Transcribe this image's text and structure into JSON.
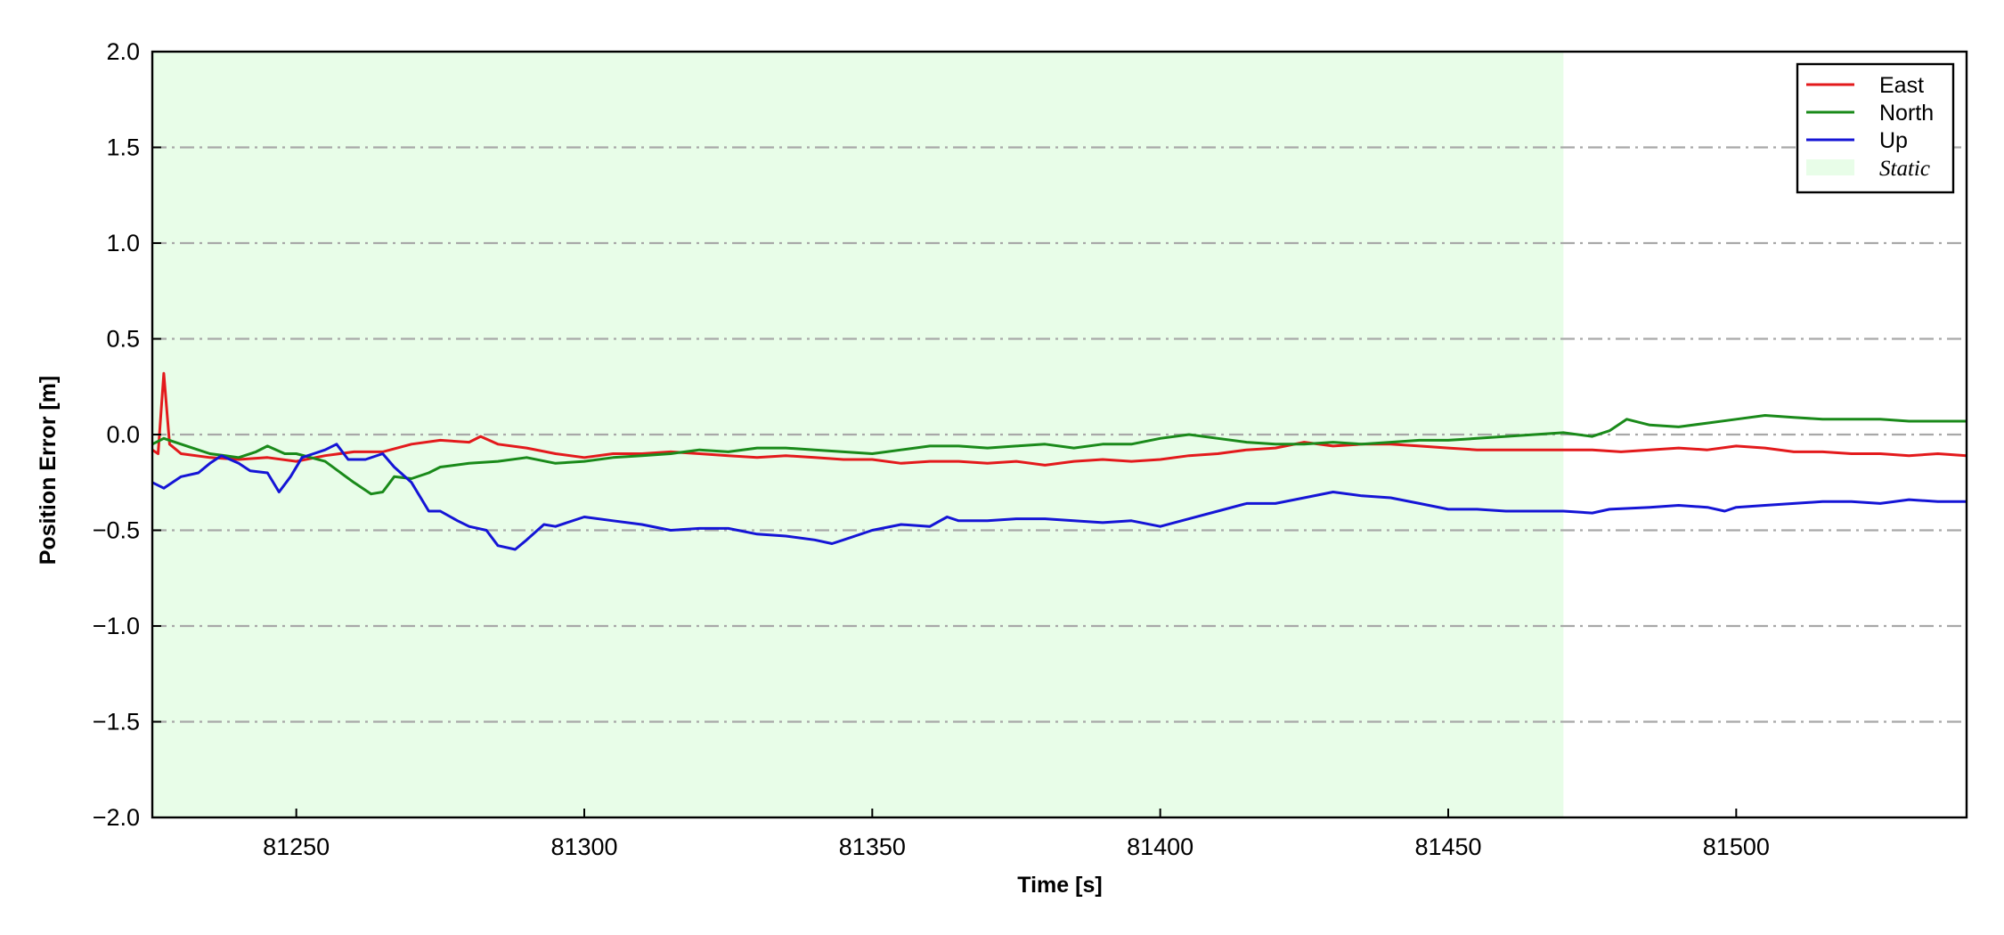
{
  "chart_data": {
    "type": "line",
    "xlabel": "Time [s]",
    "ylabel": "Position Error [m]",
    "xlim": [
      81225,
      81540
    ],
    "ylim": [
      -2.0,
      2.0
    ],
    "xticks": [
      81250,
      81300,
      81350,
      81400,
      81450,
      81500
    ],
    "xtick_labels": [
      "81250",
      "81300",
      "81350",
      "81400",
      "81450",
      "81500"
    ],
    "yticks": [
      2.0,
      1.5,
      1.0,
      0.5,
      0.0,
      -0.5,
      -1.0,
      -1.5,
      -2.0
    ],
    "ytick_labels": [
      "2.0",
      "1.5",
      "1.0",
      "0.5",
      "0.0",
      "−0.5",
      "−1.0",
      "−1.5",
      "−2.0"
    ],
    "grid": "horizontal dash-dot",
    "legend_position": "top-right",
    "shaded_region": {
      "label": "Static",
      "x": [
        81225,
        81470
      ],
      "color": "#e8fde8"
    },
    "series": [
      {
        "name": "East",
        "color": "#e31a1c",
        "points": [
          [
            81225,
            -0.08
          ],
          [
            81226,
            -0.1
          ],
          [
            81227,
            0.32
          ],
          [
            81228,
            -0.05
          ],
          [
            81230,
            -0.1
          ],
          [
            81235,
            -0.12
          ],
          [
            81240,
            -0.13
          ],
          [
            81245,
            -0.12
          ],
          [
            81250,
            -0.14
          ],
          [
            81255,
            -0.11
          ],
          [
            81260,
            -0.09
          ],
          [
            81265,
            -0.09
          ],
          [
            81270,
            -0.05
          ],
          [
            81275,
            -0.03
          ],
          [
            81280,
            -0.04
          ],
          [
            81282,
            -0.01
          ],
          [
            81285,
            -0.05
          ],
          [
            81290,
            -0.07
          ],
          [
            81295,
            -0.1
          ],
          [
            81300,
            -0.12
          ],
          [
            81305,
            -0.1
          ],
          [
            81310,
            -0.1
          ],
          [
            81315,
            -0.09
          ],
          [
            81320,
            -0.1
          ],
          [
            81325,
            -0.11
          ],
          [
            81330,
            -0.12
          ],
          [
            81335,
            -0.11
          ],
          [
            81340,
            -0.12
          ],
          [
            81345,
            -0.13
          ],
          [
            81350,
            -0.13
          ],
          [
            81355,
            -0.15
          ],
          [
            81360,
            -0.14
          ],
          [
            81365,
            -0.14
          ],
          [
            81370,
            -0.15
          ],
          [
            81375,
            -0.14
          ],
          [
            81380,
            -0.16
          ],
          [
            81385,
            -0.14
          ],
          [
            81390,
            -0.13
          ],
          [
            81395,
            -0.14
          ],
          [
            81400,
            -0.13
          ],
          [
            81405,
            -0.11
          ],
          [
            81410,
            -0.1
          ],
          [
            81415,
            -0.08
          ],
          [
            81420,
            -0.07
          ],
          [
            81425,
            -0.04
          ],
          [
            81430,
            -0.06
          ],
          [
            81435,
            -0.05
          ],
          [
            81440,
            -0.05
          ],
          [
            81445,
            -0.06
          ],
          [
            81450,
            -0.07
          ],
          [
            81455,
            -0.08
          ],
          [
            81460,
            -0.08
          ],
          [
            81465,
            -0.08
          ],
          [
            81470,
            -0.08
          ],
          [
            81475,
            -0.08
          ],
          [
            81480,
            -0.09
          ],
          [
            81485,
            -0.08
          ],
          [
            81490,
            -0.07
          ],
          [
            81495,
            -0.08
          ],
          [
            81500,
            -0.06
          ],
          [
            81505,
            -0.07
          ],
          [
            81510,
            -0.09
          ],
          [
            81515,
            -0.09
          ],
          [
            81520,
            -0.1
          ],
          [
            81525,
            -0.1
          ],
          [
            81530,
            -0.11
          ],
          [
            81535,
            -0.1
          ],
          [
            81540,
            -0.11
          ]
        ]
      },
      {
        "name": "North",
        "color": "#1a8a1a",
        "points": [
          [
            81225,
            -0.05
          ],
          [
            81227,
            -0.02
          ],
          [
            81230,
            -0.05
          ],
          [
            81235,
            -0.1
          ],
          [
            81240,
            -0.12
          ],
          [
            81243,
            -0.09
          ],
          [
            81245,
            -0.06
          ],
          [
            81248,
            -0.1
          ],
          [
            81250,
            -0.1
          ],
          [
            81255,
            -0.14
          ],
          [
            81260,
            -0.25
          ],
          [
            81263,
            -0.31
          ],
          [
            81265,
            -0.3
          ],
          [
            81267,
            -0.22
          ],
          [
            81270,
            -0.23
          ],
          [
            81273,
            -0.2
          ],
          [
            81275,
            -0.17
          ],
          [
            81280,
            -0.15
          ],
          [
            81285,
            -0.14
          ],
          [
            81290,
            -0.12
          ],
          [
            81295,
            -0.15
          ],
          [
            81300,
            -0.14
          ],
          [
            81305,
            -0.12
          ],
          [
            81310,
            -0.11
          ],
          [
            81315,
            -0.1
          ],
          [
            81320,
            -0.08
          ],
          [
            81325,
            -0.09
          ],
          [
            81330,
            -0.07
          ],
          [
            81335,
            -0.07
          ],
          [
            81340,
            -0.08
          ],
          [
            81345,
            -0.09
          ],
          [
            81350,
            -0.1
          ],
          [
            81355,
            -0.08
          ],
          [
            81360,
            -0.06
          ],
          [
            81365,
            -0.06
          ],
          [
            81370,
            -0.07
          ],
          [
            81375,
            -0.06
          ],
          [
            81380,
            -0.05
          ],
          [
            81385,
            -0.07
          ],
          [
            81390,
            -0.05
          ],
          [
            81395,
            -0.05
          ],
          [
            81400,
            -0.02
          ],
          [
            81405,
            0.0
          ],
          [
            81410,
            -0.02
          ],
          [
            81415,
            -0.04
          ],
          [
            81420,
            -0.05
          ],
          [
            81425,
            -0.05
          ],
          [
            81430,
            -0.04
          ],
          [
            81435,
            -0.05
          ],
          [
            81440,
            -0.04
          ],
          [
            81445,
            -0.03
          ],
          [
            81450,
            -0.03
          ],
          [
            81455,
            -0.02
          ],
          [
            81460,
            -0.01
          ],
          [
            81465,
            0.0
          ],
          [
            81470,
            0.01
          ],
          [
            81475,
            -0.01
          ],
          [
            81478,
            0.02
          ],
          [
            81481,
            0.08
          ],
          [
            81485,
            0.05
          ],
          [
            81490,
            0.04
          ],
          [
            81495,
            0.06
          ],
          [
            81500,
            0.08
          ],
          [
            81505,
            0.1
          ],
          [
            81510,
            0.09
          ],
          [
            81515,
            0.08
          ],
          [
            81520,
            0.08
          ],
          [
            81525,
            0.08
          ],
          [
            81530,
            0.07
          ],
          [
            81535,
            0.07
          ],
          [
            81540,
            0.07
          ]
        ]
      },
      {
        "name": "Up",
        "color": "#1515d6",
        "points": [
          [
            81225,
            -0.25
          ],
          [
            81227,
            -0.28
          ],
          [
            81230,
            -0.22
          ],
          [
            81233,
            -0.2
          ],
          [
            81235,
            -0.15
          ],
          [
            81237,
            -0.11
          ],
          [
            81240,
            -0.15
          ],
          [
            81242,
            -0.19
          ],
          [
            81245,
            -0.2
          ],
          [
            81247,
            -0.3
          ],
          [
            81249,
            -0.22
          ],
          [
            81251,
            -0.12
          ],
          [
            81253,
            -0.1
          ],
          [
            81255,
            -0.08
          ],
          [
            81257,
            -0.05
          ],
          [
            81259,
            -0.13
          ],
          [
            81262,
            -0.13
          ],
          [
            81265,
            -0.1
          ],
          [
            81267,
            -0.17
          ],
          [
            81270,
            -0.25
          ],
          [
            81273,
            -0.4
          ],
          [
            81275,
            -0.4
          ],
          [
            81278,
            -0.45
          ],
          [
            81280,
            -0.48
          ],
          [
            81283,
            -0.5
          ],
          [
            81285,
            -0.58
          ],
          [
            81288,
            -0.6
          ],
          [
            81290,
            -0.55
          ],
          [
            81293,
            -0.47
          ],
          [
            81295,
            -0.48
          ],
          [
            81300,
            -0.43
          ],
          [
            81305,
            -0.45
          ],
          [
            81310,
            -0.47
          ],
          [
            81315,
            -0.5
          ],
          [
            81320,
            -0.49
          ],
          [
            81325,
            -0.49
          ],
          [
            81330,
            -0.52
          ],
          [
            81335,
            -0.53
          ],
          [
            81340,
            -0.55
          ],
          [
            81343,
            -0.57
          ],
          [
            81345,
            -0.55
          ],
          [
            81350,
            -0.5
          ],
          [
            81355,
            -0.47
          ],
          [
            81360,
            -0.48
          ],
          [
            81363,
            -0.43
          ],
          [
            81365,
            -0.45
          ],
          [
            81370,
            -0.45
          ],
          [
            81375,
            -0.44
          ],
          [
            81380,
            -0.44
          ],
          [
            81385,
            -0.45
          ],
          [
            81390,
            -0.46
          ],
          [
            81395,
            -0.45
          ],
          [
            81400,
            -0.48
          ],
          [
            81405,
            -0.44
          ],
          [
            81410,
            -0.4
          ],
          [
            81415,
            -0.36
          ],
          [
            81420,
            -0.36
          ],
          [
            81425,
            -0.33
          ],
          [
            81430,
            -0.3
          ],
          [
            81435,
            -0.32
          ],
          [
            81440,
            -0.33
          ],
          [
            81445,
            -0.36
          ],
          [
            81450,
            -0.39
          ],
          [
            81455,
            -0.39
          ],
          [
            81460,
            -0.4
          ],
          [
            81465,
            -0.4
          ],
          [
            81470,
            -0.4
          ],
          [
            81475,
            -0.41
          ],
          [
            81478,
            -0.39
          ],
          [
            81485,
            -0.38
          ],
          [
            81490,
            -0.37
          ],
          [
            81495,
            -0.38
          ],
          [
            81498,
            -0.4
          ],
          [
            81500,
            -0.38
          ],
          [
            81505,
            -0.37
          ],
          [
            81510,
            -0.36
          ],
          [
            81515,
            -0.35
          ],
          [
            81520,
            -0.35
          ],
          [
            81525,
            -0.36
          ],
          [
            81530,
            -0.34
          ],
          [
            81535,
            -0.35
          ],
          [
            81540,
            -0.35
          ]
        ]
      }
    ]
  }
}
